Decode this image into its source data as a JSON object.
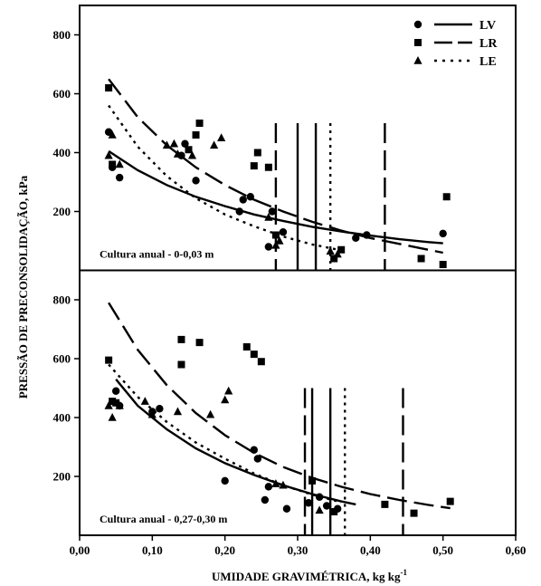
{
  "chart_data": {
    "type": "scatter",
    "xlabel": "UMIDADE GRAVIMÉTRICA, kg kg",
    "xlabel_sup": "-1",
    "ylabel": "PRESSÃO DE PRECONSOLIDAÇÃO, kPa",
    "xlim": [
      0.0,
      0.6
    ],
    "x_ticks": [
      "0,00",
      "0,10",
      "0,20",
      "0,30",
      "0,40",
      "0,50",
      "0,60"
    ],
    "x_tick_values": [
      0,
      0.1,
      0.2,
      0.3,
      0.4,
      0.5,
      0.6
    ],
    "legend": {
      "position": "top-right",
      "entries": [
        {
          "label": "LV",
          "marker": "circle",
          "line": "solid"
        },
        {
          "label": "LR",
          "marker": "square",
          "line": "long-dash"
        },
        {
          "label": "LE",
          "marker": "triangle",
          "line": "dotted"
        }
      ]
    },
    "panels": [
      {
        "annotation": "Cultura anual - 0-0,03 m",
        "ylim": [
          0,
          900
        ],
        "y_ticks": [
          "200",
          "400",
          "600",
          "800"
        ],
        "y_tick_values": [
          200,
          400,
          600,
          800
        ],
        "series": [
          {
            "name": "LV",
            "marker": "circle",
            "points": [
              [
                0.04,
                470
              ],
              [
                0.045,
                350
              ],
              [
                0.055,
                315
              ],
              [
                0.14,
                390
              ],
              [
                0.145,
                430
              ],
              [
                0.16,
                305
              ],
              [
                0.22,
                200
              ],
              [
                0.225,
                240
              ],
              [
                0.235,
                250
              ],
              [
                0.26,
                80
              ],
              [
                0.265,
                200
              ],
              [
                0.28,
                130
              ],
              [
                0.38,
                110
              ],
              [
                0.395,
                120
              ],
              [
                0.5,
                125
              ]
            ],
            "curve": [
              [
                0.04,
                405
              ],
              [
                0.08,
                340
              ],
              [
                0.12,
                290
              ],
              [
                0.16,
                250
              ],
              [
                0.2,
                218
              ],
              [
                0.24,
                190
              ],
              [
                0.28,
                168
              ],
              [
                0.32,
                148
              ],
              [
                0.36,
                132
              ],
              [
                0.4,
                118
              ],
              [
                0.44,
                106
              ],
              [
                0.48,
                96
              ],
              [
                0.5,
                92
              ]
            ],
            "vlines": [
              0.3,
              0.325
            ]
          },
          {
            "name": "LR",
            "marker": "square",
            "points": [
              [
                0.04,
                620
              ],
              [
                0.045,
                360
              ],
              [
                0.15,
                410
              ],
              [
                0.16,
                460
              ],
              [
                0.165,
                500
              ],
              [
                0.24,
                355
              ],
              [
                0.245,
                400
              ],
              [
                0.26,
                350
              ],
              [
                0.27,
                120
              ],
              [
                0.35,
                40
              ],
              [
                0.36,
                70
              ],
              [
                0.47,
                40
              ],
              [
                0.5,
                20
              ],
              [
                0.505,
                250
              ]
            ],
            "curve": [
              [
                0.04,
                650
              ],
              [
                0.08,
                520
              ],
              [
                0.12,
                425
              ],
              [
                0.16,
                350
              ],
              [
                0.2,
                290
              ],
              [
                0.24,
                240
              ],
              [
                0.28,
                200
              ],
              [
                0.32,
                165
              ],
              [
                0.36,
                135
              ],
              [
                0.4,
                110
              ],
              [
                0.44,
                90
              ],
              [
                0.48,
                70
              ],
              [
                0.5,
                60
              ]
            ],
            "vlines": [
              0.27,
              0.42
            ]
          },
          {
            "name": "LE",
            "marker": "triangle",
            "points": [
              [
                0.04,
                390
              ],
              [
                0.045,
                460
              ],
              [
                0.055,
                360
              ],
              [
                0.12,
                425
              ],
              [
                0.13,
                430
              ],
              [
                0.135,
                395
              ],
              [
                0.155,
                390
              ],
              [
                0.185,
                425
              ],
              [
                0.195,
                450
              ],
              [
                0.26,
                180
              ],
              [
                0.27,
                85
              ],
              [
                0.275,
                100
              ],
              [
                0.345,
                65
              ],
              [
                0.355,
                55
              ]
            ],
            "curve": [
              [
                0.04,
                560
              ],
              [
                0.08,
                420
              ],
              [
                0.12,
                320
              ],
              [
                0.16,
                245
              ],
              [
                0.2,
                190
              ],
              [
                0.24,
                150
              ],
              [
                0.28,
                115
              ],
              [
                0.32,
                88
              ],
              [
                0.36,
                68
              ]
            ],
            "vlines": [
              0.345
            ]
          }
        ]
      },
      {
        "annotation": "Cultura anual - 0,27-0,30 m",
        "ylim": [
          0,
          900
        ],
        "y_ticks": [
          "200",
          "400",
          "600",
          "800"
        ],
        "y_tick_values": [
          200,
          400,
          600,
          800
        ],
        "series": [
          {
            "name": "LV",
            "marker": "circle",
            "points": [
              [
                0.05,
                490
              ],
              [
                0.055,
                440
              ],
              [
                0.1,
                420
              ],
              [
                0.11,
                430
              ],
              [
                0.2,
                185
              ],
              [
                0.24,
                290
              ],
              [
                0.245,
                260
              ],
              [
                0.255,
                120
              ],
              [
                0.26,
                165
              ],
              [
                0.285,
                90
              ],
              [
                0.315,
                110
              ],
              [
                0.33,
                130
              ],
              [
                0.34,
                100
              ],
              [
                0.355,
                90
              ]
            ],
            "curve": [
              [
                0.05,
                530
              ],
              [
                0.08,
                440
              ],
              [
                0.12,
                360
              ],
              [
                0.16,
                295
              ],
              [
                0.2,
                245
              ],
              [
                0.24,
                205
              ],
              [
                0.28,
                170
              ],
              [
                0.32,
                140
              ],
              [
                0.36,
                115
              ],
              [
                0.38,
                105
              ]
            ],
            "vlines": [
              0.32,
              0.345
            ]
          },
          {
            "name": "LR",
            "marker": "square",
            "points": [
              [
                0.04,
                595
              ],
              [
                0.045,
                455
              ],
              [
                0.05,
                450
              ],
              [
                0.14,
                665
              ],
              [
                0.14,
                580
              ],
              [
                0.165,
                655
              ],
              [
                0.23,
                640
              ],
              [
                0.24,
                615
              ],
              [
                0.25,
                590
              ],
              [
                0.32,
                185
              ],
              [
                0.35,
                80
              ],
              [
                0.42,
                105
              ],
              [
                0.46,
                75
              ],
              [
                0.51,
                115
              ]
            ],
            "curve": [
              [
                0.04,
                790
              ],
              [
                0.08,
                630
              ],
              [
                0.12,
                510
              ],
              [
                0.16,
                415
              ],
              [
                0.2,
                340
              ],
              [
                0.24,
                280
              ],
              [
                0.28,
                232
              ],
              [
                0.32,
                195
              ],
              [
                0.36,
                165
              ],
              [
                0.4,
                140
              ],
              [
                0.44,
                120
              ],
              [
                0.48,
                103
              ],
              [
                0.51,
                92
              ]
            ],
            "vlines": [
              0.31,
              0.445
            ]
          },
          {
            "name": "LE",
            "marker": "triangle",
            "points": [
              [
                0.04,
                440
              ],
              [
                0.045,
                400
              ],
              [
                0.055,
                440
              ],
              [
                0.09,
                455
              ],
              [
                0.1,
                410
              ],
              [
                0.135,
                420
              ],
              [
                0.18,
                410
              ],
              [
                0.2,
                460
              ],
              [
                0.205,
                490
              ],
              [
                0.27,
                175
              ],
              [
                0.28,
                170
              ],
              [
                0.33,
                85
              ]
            ],
            "curve": [
              [
                0.04,
                580
              ],
              [
                0.08,
                470
              ],
              [
                0.12,
                385
              ],
              [
                0.16,
                315
              ],
              [
                0.2,
                260
              ],
              [
                0.24,
                210
              ],
              [
                0.28,
                170
              ],
              [
                0.32,
                138
              ],
              [
                0.36,
                112
              ]
            ],
            "vlines": [
              0.365
            ]
          }
        ]
      }
    ]
  }
}
